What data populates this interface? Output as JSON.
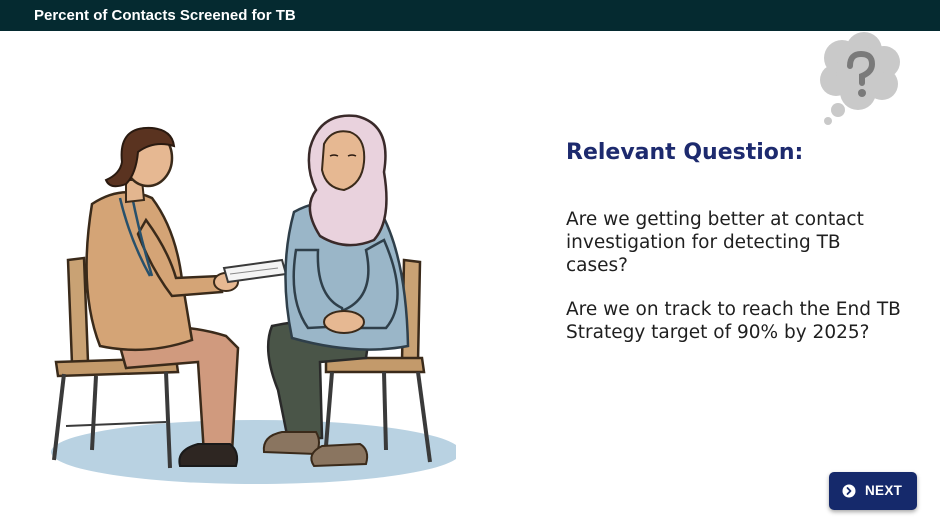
{
  "header": {
    "title": "Percent of Contacts Screened for TB"
  },
  "content": {
    "heading": "Relevant Question:",
    "question_1": "Are we getting better at contact investigation for detecting TB cases?",
    "question_2": "Are we on track to reach the End TB Strategy target of 90% by 2025?"
  },
  "navigation": {
    "next_label": "NEXT"
  },
  "colors": {
    "header_bg": "#052a30",
    "heading": "#1d2a6e",
    "button_bg": "#15296b"
  },
  "icons": {
    "thought_bubble": "question-mark-thought-bubble-icon",
    "next": "chevron-right-circle-icon"
  }
}
